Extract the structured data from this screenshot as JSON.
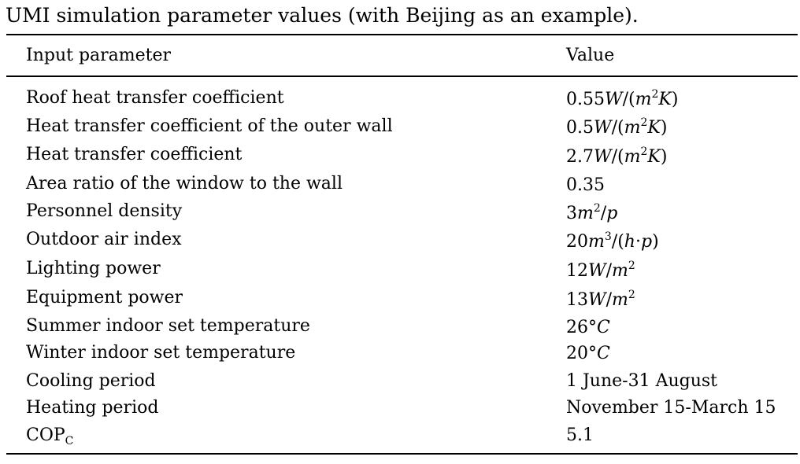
{
  "caption": "UMI simulation parameter values (with Beijing as an example).",
  "headers": {
    "parameter": "Input parameter",
    "value": "Value"
  },
  "rows": [
    {
      "parameter": "Roof heat transfer coefficient",
      "value": "0.55W/(m2K)"
    },
    {
      "parameter": "Heat transfer coefficient of the outer wall",
      "value": "0.5W/(m2K)"
    },
    {
      "parameter": "Heat transfer coefficient",
      "value": "2.7W/(m2K)"
    },
    {
      "parameter": "Area ratio of the window to the wall",
      "value": "0.35"
    },
    {
      "parameter": "Personnel density",
      "value": "3m2/p"
    },
    {
      "parameter": "Outdoor air index",
      "value": "20m3/(h·p)"
    },
    {
      "parameter": "Lighting power",
      "value": "12W/m2"
    },
    {
      "parameter": "Equipment power",
      "value": "13W/m2"
    },
    {
      "parameter": "Summer indoor set temperature",
      "value": "26°C"
    },
    {
      "parameter": "Winter indoor set temperature",
      "value": "20°C"
    },
    {
      "parameter": "Cooling period",
      "value": "1 June-31 August"
    },
    {
      "parameter": "Heating period",
      "value": "November 15-March 15"
    },
    {
      "parameter": "COPC",
      "value": "5.1"
    }
  ]
}
